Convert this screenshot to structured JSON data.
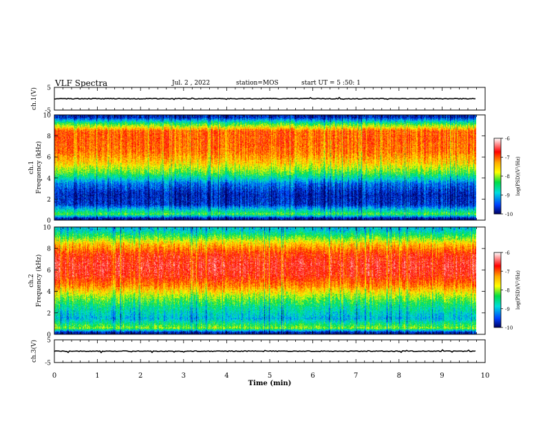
{
  "header": {
    "title": "VLF Spectra",
    "date": "Jul. 2 , 2022",
    "station": "station=MOS",
    "start": "start UT = 5 :50: 1"
  },
  "colorbar": {
    "label": "log(PSD)(V²/Hz)",
    "ticks": [
      "-6",
      "-7",
      "-8",
      "-9",
      "-10"
    ],
    "colors": [
      "#ffffff",
      "#ff0000",
      "#ffaa00",
      "#ffff00",
      "#00dd44",
      "#00dddd",
      "#0040ff",
      "#000060"
    ]
  },
  "chart_data": [
    {
      "type": "line",
      "name": "ch1-voltage",
      "ylabel": "ch.1(V)",
      "ylim": [
        -5,
        5
      ],
      "yticks": [
        "5",
        "-5"
      ],
      "xlim": [
        0,
        10
      ],
      "x": [
        0,
        9.8
      ],
      "y": [
        0,
        0
      ]
    },
    {
      "type": "heatmap",
      "name": "ch1-spectrogram",
      "ylabel": "ch.1\nFrequency (kHz)",
      "ylim": [
        0,
        10
      ],
      "yticks": [
        "0",
        "2",
        "4",
        "6",
        "8",
        "10"
      ],
      "xlim": [
        0,
        10
      ],
      "data_end_x": 9.8,
      "zlim": [
        -10,
        -6
      ],
      "profile_freq_khz": [
        0.2,
        0.6,
        1.5,
        2.5,
        3.5,
        4.5,
        5.5,
        6.5,
        7.5,
        8.5,
        9.3,
        9.8
      ],
      "profile_log_psd": [
        -9.8,
        -8.2,
        -9.6,
        -9.7,
        -9.3,
        -8.2,
        -7.5,
        -7.1,
        -7.0,
        -7.0,
        -8.5,
        -9.7
      ]
    },
    {
      "type": "heatmap",
      "name": "ch2-spectrogram",
      "ylabel": "ch.2\nFrequency (kHz)",
      "ylim": [
        0,
        10
      ],
      "yticks": [
        "0",
        "2",
        "4",
        "6",
        "8",
        "10"
      ],
      "xlim": [
        0,
        10
      ],
      "data_end_x": 9.8,
      "zlim": [
        -10,
        -6
      ],
      "profile_freq_khz": [
        0.2,
        0.6,
        1.5,
        2.5,
        3.5,
        4.5,
        5.5,
        6.5,
        7.5,
        8.5,
        9.3,
        9.8
      ],
      "profile_log_psd": [
        -9.8,
        -8.0,
        -9.0,
        -8.6,
        -8.0,
        -7.2,
        -6.7,
        -6.6,
        -6.8,
        -7.5,
        -8.4,
        -8.9
      ]
    },
    {
      "type": "line",
      "name": "ch3-voltage",
      "ylabel": "ch.3(V)",
      "ylim": [
        -5,
        5
      ],
      "yticks": [
        "5",
        "-5"
      ],
      "xlim": [
        0,
        10
      ],
      "x": [
        0,
        9.8
      ],
      "y": [
        0,
        0
      ]
    }
  ],
  "xaxis": {
    "label": "Time (min)",
    "ticks": [
      "0",
      "1",
      "2",
      "3",
      "4",
      "5",
      "6",
      "7",
      "8",
      "9",
      "10"
    ]
  }
}
